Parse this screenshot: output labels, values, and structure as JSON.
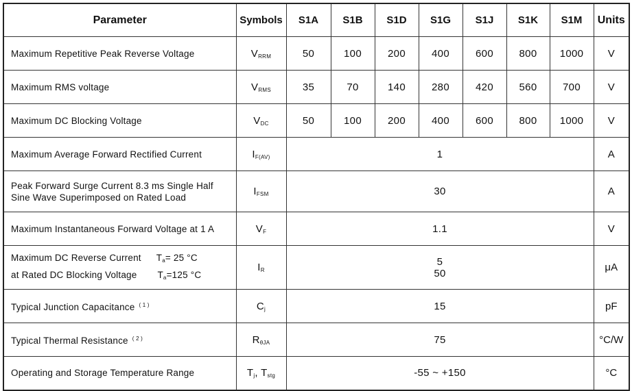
{
  "header": {
    "parameter": "Parameter",
    "symbols": "Symbols",
    "parts": [
      "S1A",
      "S1B",
      "S1D",
      "S1G",
      "S1J",
      "S1K",
      "S1M"
    ],
    "units": "Units"
  },
  "rows": [
    {
      "param": "Maximum Repetitive Peak Reverse Voltage",
      "sym": "V",
      "sub": "RRM",
      "values": [
        "50",
        "100",
        "200",
        "400",
        "600",
        "800",
        "1000"
      ],
      "unit": "V"
    },
    {
      "param": "Maximum RMS voltage",
      "sym": "V",
      "sub": "RMS",
      "values": [
        "35",
        "70",
        "140",
        "280",
        "420",
        "560",
        "700"
      ],
      "unit": "V"
    },
    {
      "param": "Maximum DC Blocking Voltage",
      "sym": "V",
      "sub": "DC",
      "values": [
        "50",
        "100",
        "200",
        "400",
        "600",
        "800",
        "1000"
      ],
      "unit": "V"
    },
    {
      "param": "Maximum Average Forward Rectified Current",
      "sym": "I",
      "sub": "F(AV)",
      "value": "1",
      "unit": "A"
    },
    {
      "param": "Peak Forward Surge Current 8.3 ms Single Half",
      "param2": "Sine Wave Superimposed on Rated Load",
      "sym": "I",
      "sub": "FSM",
      "value": "30",
      "unit": "A"
    },
    {
      "param": "Maximum Instantaneous Forward Voltage at 1 A",
      "sym": "V",
      "sub": "F",
      "value": "1.1",
      "unit": "V"
    },
    {
      "param": "Maximum DC Reverse Current",
      "param2": "at Rated DC Blocking Voltage",
      "cond1": "T",
      "cond1sub": "a",
      "cond1val": "= 25 °C",
      "cond2": "T",
      "cond2sub": "a",
      "cond2val": "=125 °C",
      "sym": "I",
      "sub": "R",
      "value": "5",
      "value2": "50",
      "unit": "μA"
    },
    {
      "param": "Typical Junction Capacitance",
      "note": "( 1 )",
      "sym": "C",
      "sub": "j",
      "value": "15",
      "unit": "pF"
    },
    {
      "param": "Typical Thermal Resistance",
      "note": "( 2 )",
      "sym": "R",
      "sub": "θJA",
      "value": "75",
      "unit": "°C/W"
    },
    {
      "param": "Operating and Storage Temperature Range",
      "sym": "T",
      "sub": "j",
      "sym2": ", T",
      "sub2": "stg",
      "value": "-55 ~ +150",
      "unit": "°C"
    }
  ]
}
